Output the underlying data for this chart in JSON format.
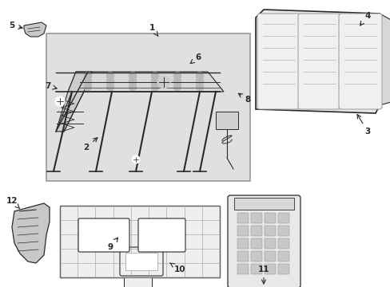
{
  "bg_color": "#ffffff",
  "lc": "#2a2a2a",
  "lgray": "#c8c8c8",
  "mgray": "#999999",
  "box_fill": "#e0e0e0",
  "figsize": [
    4.89,
    3.6
  ],
  "dpi": 100
}
